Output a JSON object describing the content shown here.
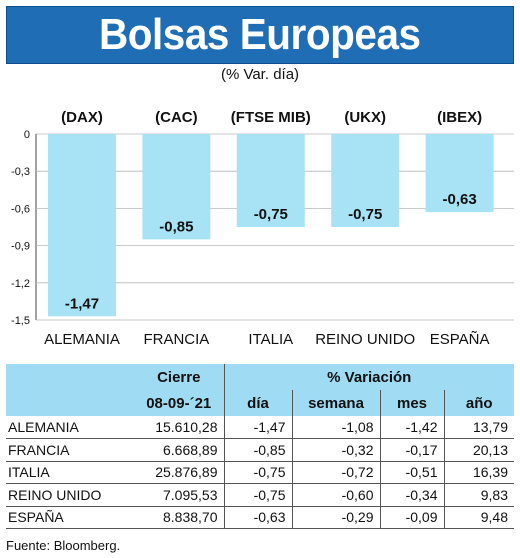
{
  "title": "Bolsas Europeas",
  "subtitle": "(% Var. día)",
  "chart_data": {
    "type": "bar",
    "categories": [
      "ALEMANIA",
      "FRANCIA",
      "ITALIA",
      "REINO UNIDO",
      "ESPAÑA"
    ],
    "index_labels": [
      "(DAX)",
      "(CAC)",
      "(FTSE MIB)",
      "(UKX)",
      "(IBEX)"
    ],
    "values": [
      -1.47,
      -0.85,
      -0.75,
      -0.75,
      -0.63
    ],
    "value_labels": [
      "-1,47",
      "-0,85",
      "-0,75",
      "-0,75",
      "-0,63"
    ],
    "ylim": [
      -1.5,
      0
    ],
    "yticks": [
      0,
      -0.3,
      -0.6,
      -0.9,
      -1.2,
      -1.5
    ],
    "ytick_labels": [
      "0",
      "-0,3",
      "-0,6",
      "-0,9",
      "-1,2",
      "-1,5"
    ],
    "grid": true,
    "bar_color": "#a8e2f5"
  },
  "table": {
    "group_headers": [
      "Cierre",
      "% Variación"
    ],
    "date_header": "08-09-´21",
    "columns": [
      "día",
      "semana",
      "mes",
      "año"
    ],
    "rows": [
      {
        "name": "ALEMANIA",
        "cierre": "15.610,28",
        "dia": "-1,47",
        "semana": "-1,08",
        "mes": "-1,42",
        "ano": "13,79"
      },
      {
        "name": "FRANCIA",
        "cierre": "6.668,89",
        "dia": "-0,85",
        "semana": "-0,32",
        "mes": "-0,17",
        "ano": "20,13"
      },
      {
        "name": "ITALIA",
        "cierre": "25.876,89",
        "dia": "-0,75",
        "semana": "-0,72",
        "mes": "-0,51",
        "ano": "16,39"
      },
      {
        "name": "REINO UNIDO",
        "cierre": "7.095,53",
        "dia": "-0,75",
        "semana": "-0,60",
        "mes": "-0,34",
        "ano": "9,83"
      },
      {
        "name": "ESPAÑA",
        "cierre": "8.838,70",
        "dia": "-0,63",
        "semana": "-0,29",
        "mes": "-0,09",
        "ano": "9,48"
      }
    ]
  },
  "source": "Fuente: Bloomberg."
}
